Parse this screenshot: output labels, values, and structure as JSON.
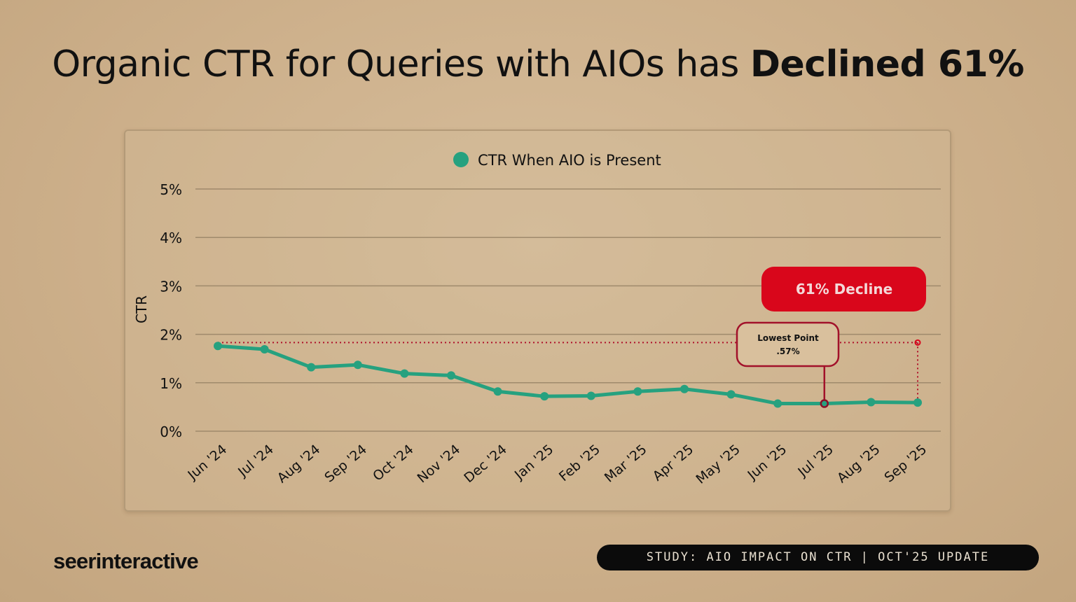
{
  "title": {
    "prefix": "Organic CTR for Queries with AIOs has ",
    "emphasis": "Declined 61%"
  },
  "chart_data": {
    "type": "line",
    "title": "",
    "xlabel": "",
    "ylabel": "CTR",
    "ylim": [
      0,
      5
    ],
    "yticks": [
      "0%",
      "1%",
      "2%",
      "3%",
      "4%",
      "5%"
    ],
    "grid": true,
    "legend_position": "top-center",
    "categories": [
      "Jun '24",
      "Jul '24",
      "Aug '24",
      "Sep '24",
      "Oct '24",
      "Nov '24",
      "Dec '24",
      "Jan '25",
      "Feb '25",
      "Mar '25",
      "Apr '25",
      "May '25",
      "Jun '25",
      "Jul '25",
      "Aug '25",
      "Sep '25"
    ],
    "series": [
      {
        "name": "CTR When AIO is Present",
        "color": "#26a17f",
        "values": [
          1.76,
          1.69,
          1.32,
          1.37,
          1.19,
          1.15,
          0.82,
          0.72,
          0.73,
          0.82,
          0.87,
          0.76,
          0.57,
          0.57,
          0.6,
          0.59
        ]
      }
    ],
    "annotations": {
      "decline_label": "61% Decline",
      "decline_color": "#d9061b",
      "reference_level": 1.83,
      "lowest_point_title": "Lowest Point",
      "lowest_point_value": ".57%",
      "lowest_point_category": "Jul '25"
    }
  },
  "footer": {
    "brand": "seerinteractive",
    "study": "STUDY: AIO IMPACT ON CTR | OCT'25 UPDATE"
  }
}
